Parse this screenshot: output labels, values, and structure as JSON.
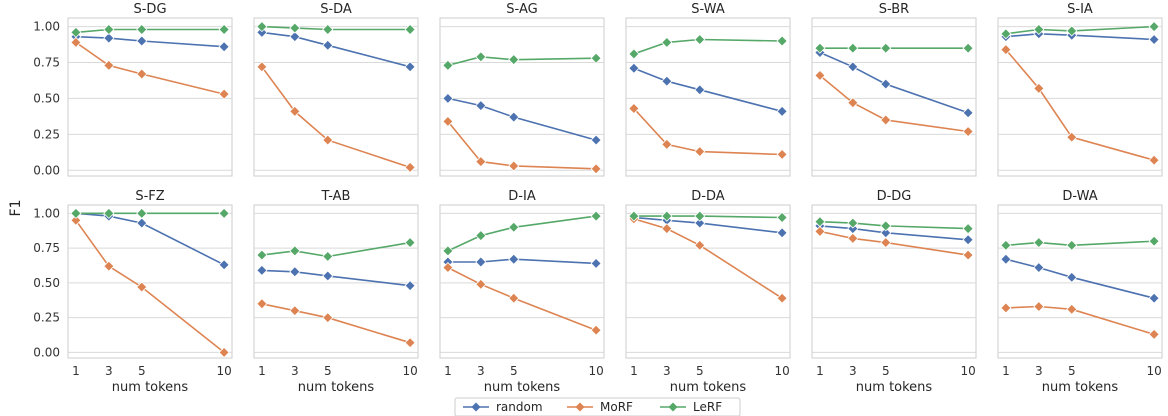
{
  "chart_data": {
    "type": "line",
    "ylabel": "F1",
    "xlabel": "num tokens",
    "x": [
      1,
      3,
      5,
      10
    ],
    "x_ticks": [
      1,
      3,
      5,
      10
    ],
    "ylim": [
      -0.04,
      1.06
    ],
    "y_ticks": [
      "0.00",
      "0.25",
      "0.50",
      "0.75",
      "1.00"
    ],
    "grid": true,
    "legend_placement": "bottom-center",
    "series_styles": [
      {
        "name": "random",
        "color": "#4c72b0"
      },
      {
        "name": "MoRF",
        "color": "#dd8452"
      },
      {
        "name": "LeRF",
        "color": "#55a868"
      }
    ],
    "panels": [
      {
        "title": "S-DG",
        "random": [
          0.93,
          0.92,
          0.9,
          0.86
        ],
        "MoRF": [
          0.89,
          0.73,
          0.67,
          0.53
        ],
        "LeRF": [
          0.96,
          0.98,
          0.98,
          0.98
        ]
      },
      {
        "title": "S-DA",
        "random": [
          0.96,
          0.93,
          0.87,
          0.72
        ],
        "MoRF": [
          0.72,
          0.41,
          0.21,
          0.02
        ],
        "LeRF": [
          1.0,
          0.99,
          0.98,
          0.98
        ]
      },
      {
        "title": "S-AG",
        "random": [
          0.5,
          0.45,
          0.37,
          0.21
        ],
        "MoRF": [
          0.34,
          0.06,
          0.03,
          0.01
        ],
        "LeRF": [
          0.73,
          0.79,
          0.77,
          0.78
        ]
      },
      {
        "title": "S-WA",
        "random": [
          0.71,
          0.62,
          0.56,
          0.41
        ],
        "MoRF": [
          0.43,
          0.18,
          0.13,
          0.11
        ],
        "LeRF": [
          0.81,
          0.89,
          0.91,
          0.9
        ]
      },
      {
        "title": "S-BR",
        "random": [
          0.82,
          0.72,
          0.6,
          0.4
        ],
        "MoRF": [
          0.66,
          0.47,
          0.35,
          0.27
        ],
        "LeRF": [
          0.85,
          0.85,
          0.85,
          0.85
        ]
      },
      {
        "title": "S-IA",
        "random": [
          0.93,
          0.95,
          0.94,
          0.91
        ],
        "MoRF": [
          0.84,
          0.57,
          0.23,
          0.07
        ],
        "LeRF": [
          0.95,
          0.98,
          0.97,
          1.0
        ]
      },
      {
        "title": "S-FZ",
        "random": [
          1.0,
          0.98,
          0.93,
          0.63
        ],
        "MoRF": [
          0.95,
          0.62,
          0.47,
          0.0
        ],
        "LeRF": [
          1.0,
          1.0,
          1.0,
          1.0
        ]
      },
      {
        "title": "T-AB",
        "random": [
          0.59,
          0.58,
          0.55,
          0.48
        ],
        "MoRF": [
          0.35,
          0.3,
          0.25,
          0.07
        ],
        "LeRF": [
          0.7,
          0.73,
          0.69,
          0.79
        ]
      },
      {
        "title": "D-IA",
        "random": [
          0.65,
          0.65,
          0.67,
          0.64
        ],
        "MoRF": [
          0.61,
          0.49,
          0.39,
          0.16
        ],
        "LeRF": [
          0.73,
          0.84,
          0.9,
          0.98
        ]
      },
      {
        "title": "D-DA",
        "random": [
          0.97,
          0.95,
          0.93,
          0.86
        ],
        "MoRF": [
          0.96,
          0.89,
          0.77,
          0.39
        ],
        "LeRF": [
          0.98,
          0.98,
          0.98,
          0.97
        ]
      },
      {
        "title": "D-DG",
        "random": [
          0.91,
          0.89,
          0.86,
          0.81
        ],
        "MoRF": [
          0.87,
          0.82,
          0.79,
          0.7
        ],
        "LeRF": [
          0.94,
          0.93,
          0.91,
          0.89
        ]
      },
      {
        "title": "D-WA",
        "random": [
          0.67,
          0.61,
          0.54,
          0.39
        ],
        "MoRF": [
          0.32,
          0.33,
          0.31,
          0.13
        ],
        "LeRF": [
          0.77,
          0.79,
          0.77,
          0.8
        ]
      }
    ]
  }
}
